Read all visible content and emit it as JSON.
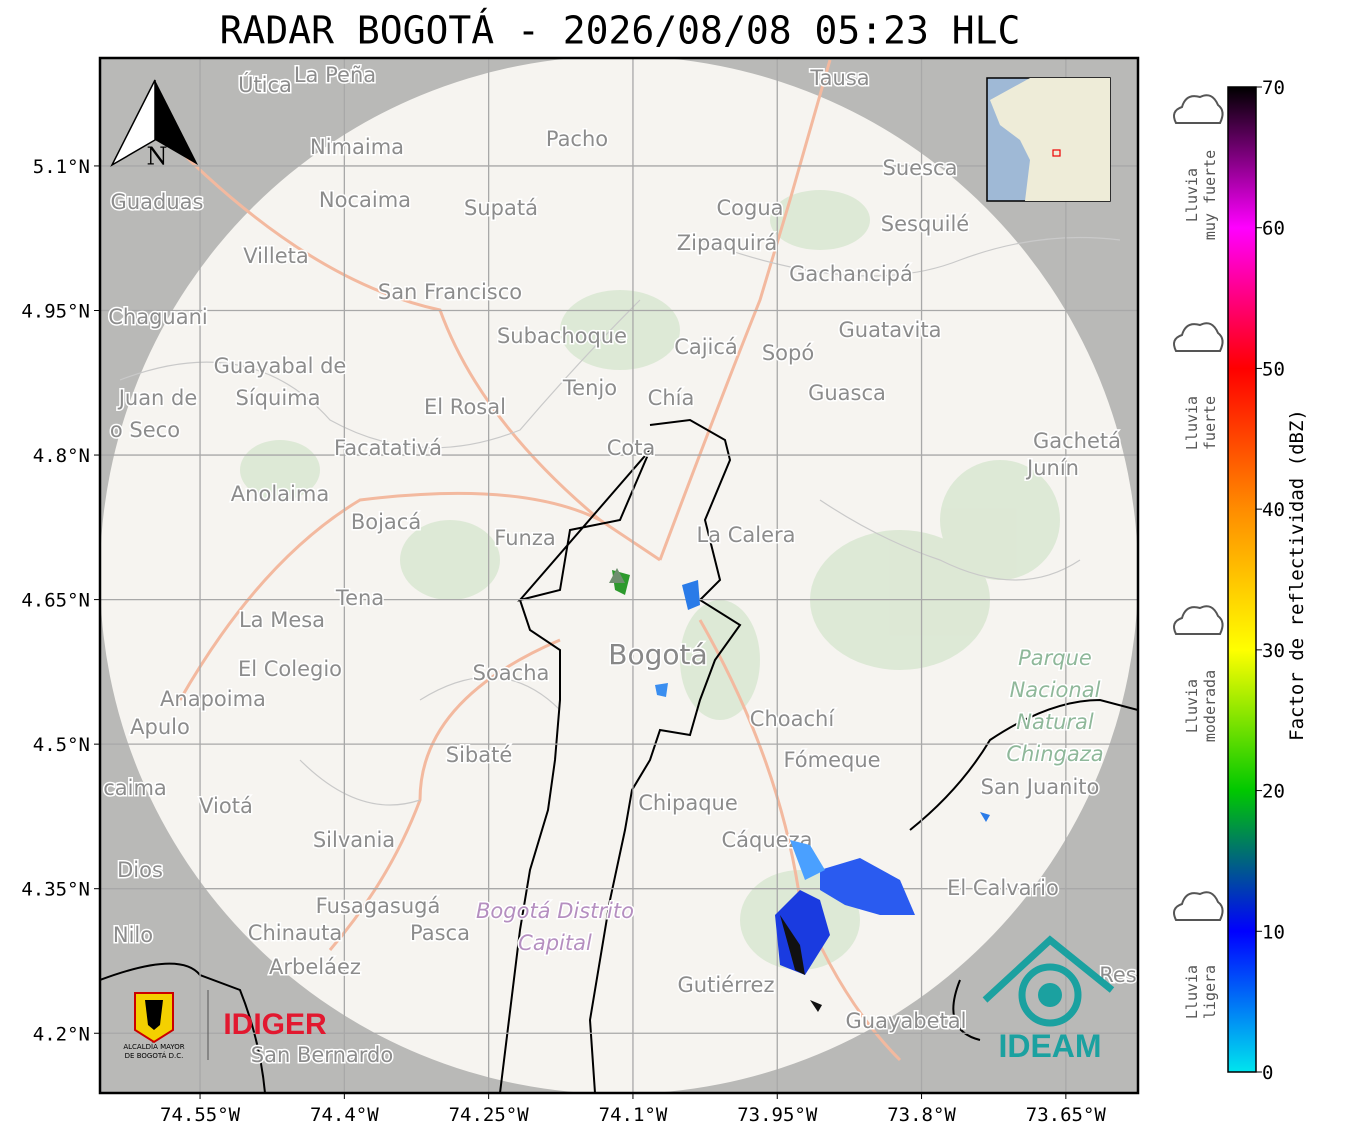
{
  "title": "RADAR BOGOTÁ - 2026/08/08 05:23 HLC",
  "map": {
    "xlim": [
      -74.654,
      -73.575
    ],
    "ylim": [
      4.138,
      5.212
    ],
    "grid": true,
    "xticks": [
      {
        "value": -74.55,
        "label": "74.55°W"
      },
      {
        "value": -74.4,
        "label": "74.4°W"
      },
      {
        "value": -74.25,
        "label": "74.25°W"
      },
      {
        "value": -74.1,
        "label": "74.1°W"
      },
      {
        "value": -73.95,
        "label": "73.95°W"
      },
      {
        "value": -73.8,
        "label": "73.8°W"
      },
      {
        "value": -73.65,
        "label": "73.65°W"
      }
    ],
    "yticks": [
      {
        "value": 5.1,
        "label": "5.1°N"
      },
      {
        "value": 4.95,
        "label": "4.95°N"
      },
      {
        "value": 4.8,
        "label": "4.8°N"
      },
      {
        "value": 4.65,
        "label": "4.65°N"
      },
      {
        "value": 4.5,
        "label": "4.5°N"
      },
      {
        "value": 4.35,
        "label": "4.35°N"
      },
      {
        "value": 4.2,
        "label": "4.2°N"
      }
    ]
  },
  "places": [
    "Útica",
    "La Peña",
    "Tausa",
    "Pacho",
    "Nimaima",
    "Guaduas",
    "Nocaima",
    "Supatá",
    "Cogua",
    "Suesca",
    "Sesquilé",
    "Zipaquirá",
    "Villeta",
    "Gachancipá",
    "San Francisco",
    "Chaguani",
    "Guatavita",
    "Subachoque",
    "Cajicá",
    "Sopó",
    "Guayabal de",
    "Síquima",
    "Juan de",
    "Tenjo",
    "Chía",
    "Guasca",
    "El Rosal",
    "o Seco",
    "Facatativá",
    "Cota",
    "Gachetá",
    "Junín",
    "Anolaima",
    "Bojacá",
    "Funza",
    "La Calera",
    "Tena",
    "La Mesa",
    "Bogotá",
    "Soacha",
    "El Colegio",
    "Parque",
    "Nacional",
    "Natural",
    "Chingaza",
    "Anapoima",
    "Apulo",
    "Choachí",
    "Sibaté",
    "Fómeque",
    "San Juanito",
    "caima",
    "Viotá",
    "Chipaque",
    "Silvania",
    "Cáqueza",
    "Dios",
    "El Calvario",
    "Fusagasugá",
    "Bogotá Distrito",
    "Capital",
    "Chinauta",
    "Pasca",
    "Nilo",
    "Arbeláez",
    "Gutiérrez",
    "Res",
    "Guayabetal",
    "San Bernardo"
  ],
  "compass": "N",
  "logos": {
    "alcaldia": [
      "ALCALDÍA MAYOR",
      "DE BOGOTÁ D.C."
    ],
    "idiger": "IDIGER",
    "ideam": "IDEAM"
  },
  "colorbar": {
    "label": "Factor de reflectividad (dBZ)",
    "lim": [
      0,
      70
    ],
    "ticks": [
      0,
      10,
      20,
      30,
      40,
      50,
      60,
      70
    ],
    "colors": [
      "#00e5ee",
      "#0000ff",
      "#00c800",
      "#ffff00",
      "#ff8c00",
      "#ff0000",
      "#ff00ff",
      "#000000"
    ]
  },
  "rain_classes": [
    [
      "Lluvia",
      "ligera"
    ],
    [
      "Lluvia",
      "moderada"
    ],
    [
      "Lluvia",
      "fuerte"
    ],
    [
      "Lluvia",
      "muy fuerte"
    ]
  ]
}
